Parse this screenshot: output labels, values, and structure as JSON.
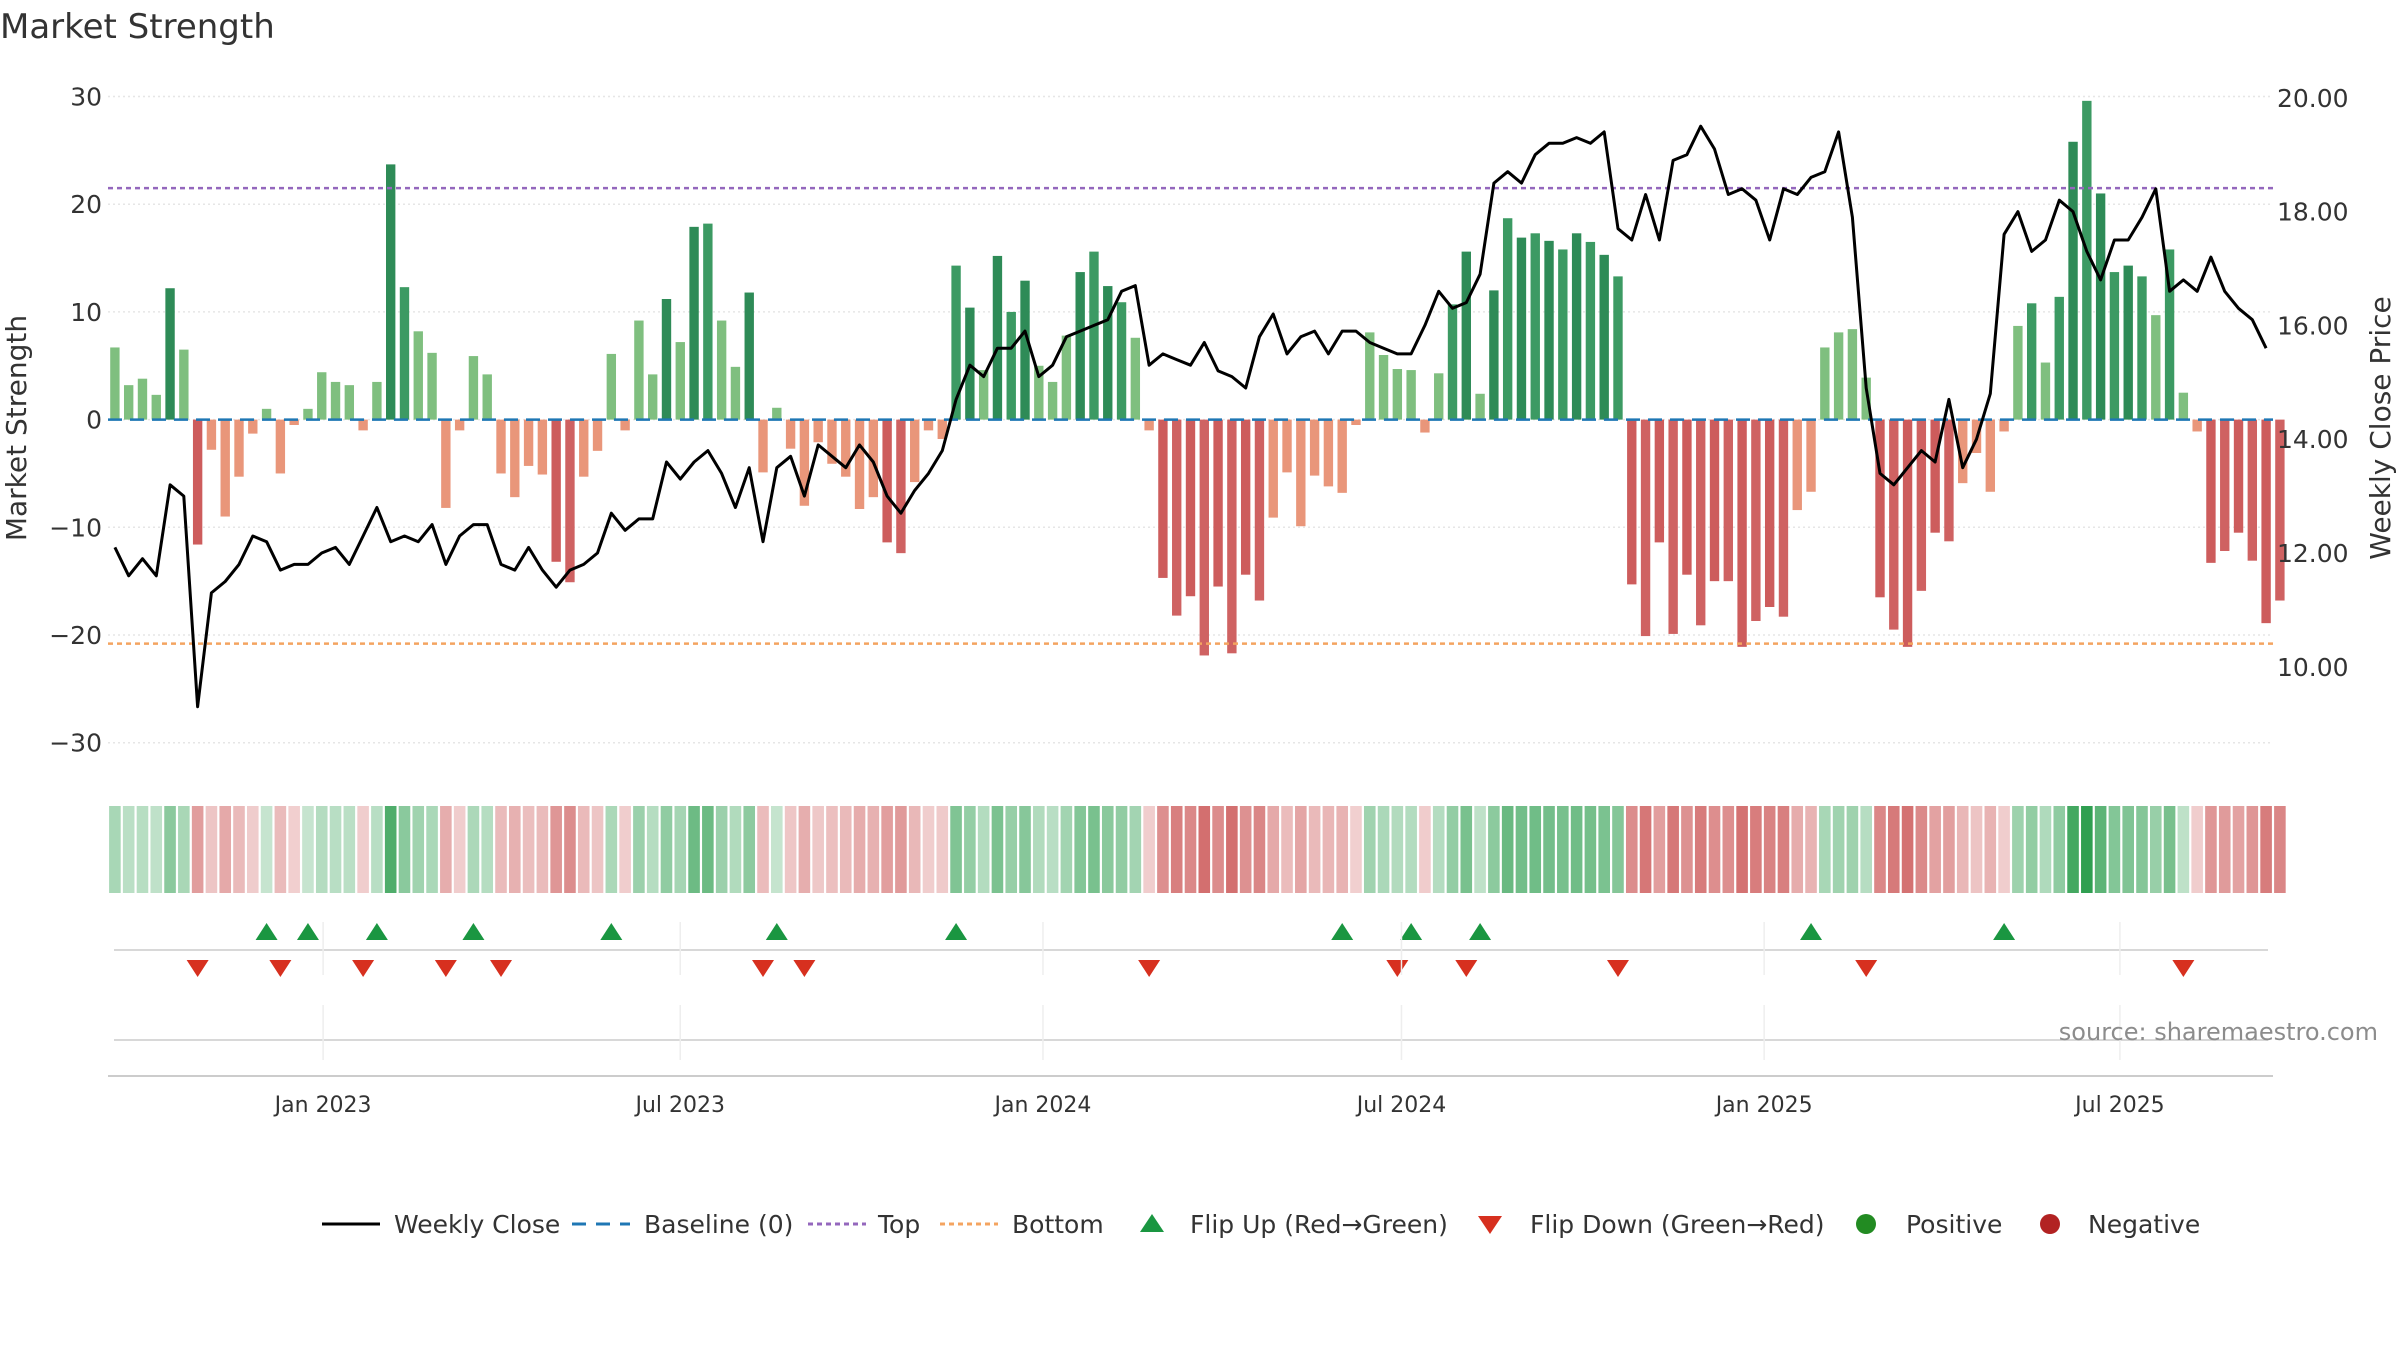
{
  "colors": {
    "pos_dark": "#2e8b57",
    "pos_light": "#7fbf7f",
    "neg_dark": "#cd5c5c",
    "neg_light": "#e9967a",
    "top_line": "#9467bd",
    "bottom_line": "#f4a460",
    "baseline": "#1f77b4",
    "close_line": "#000000",
    "flip_up": "#1a9641",
    "flip_down": "#d7301f",
    "positive_dot": "#228b22",
    "negative_dot": "#b22222",
    "grid": "#e6e6e6",
    "source_text": "#8c8c8c"
  },
  "source": "source: sharemaestro.com",
  "chart_data": {
    "type": "bar",
    "title": "Market Strength",
    "ylabel": "Market Strength",
    "y2label": "Weekly Close Price",
    "ylim": [
      -33,
      32
    ],
    "y2lim": [
      8.1,
      20.4
    ],
    "yticks": [
      -30,
      -20,
      -10,
      0,
      10,
      20,
      30
    ],
    "ytick_labels": [
      "−30",
      "−20",
      "−10",
      "0",
      "10",
      "20",
      "30"
    ],
    "y2ticks": [
      10,
      12,
      14,
      16,
      18,
      20
    ],
    "y2tick_labels": [
      "10.00",
      "12.00",
      "14.00",
      "16.00",
      "18.00",
      "20.00"
    ],
    "x_index_range": [
      -0.5,
      156.5
    ],
    "xticks": [
      {
        "index": 15.1,
        "label": "Jan 2023"
      },
      {
        "index": 41.0,
        "label": "Jul 2023"
      },
      {
        "index": 67.3,
        "label": "Jan 2024"
      },
      {
        "index": 93.3,
        "label": "Jul 2024"
      },
      {
        "index": 119.6,
        "label": "Jan 2025"
      },
      {
        "index": 145.4,
        "label": "Jul 2025"
      }
    ],
    "top_level": 21.5,
    "bottom_level": -20.8,
    "baseline": 0,
    "strength": [
      6.7,
      3.2,
      3.8,
      2.3,
      12.2,
      6.5,
      -11.6,
      -2.8,
      -9.0,
      -5.3,
      -1.3,
      1.0,
      -5.0,
      -0.5,
      1.0,
      4.4,
      3.5,
      3.2,
      -1.0,
      3.5,
      23.7,
      12.3,
      8.2,
      6.2,
      -8.2,
      -1.0,
      5.9,
      4.2,
      -5.0,
      -7.2,
      -4.3,
      -5.1,
      -13.2,
      -15.1,
      -5.3,
      -2.9,
      6.1,
      -1.0,
      9.2,
      4.2,
      11.2,
      7.2,
      17.9,
      18.2,
      9.2,
      4.9,
      11.8,
      -4.9,
      1.1,
      -2.7,
      -8.0,
      -2.1,
      -4.1,
      -5.3,
      -8.3,
      -7.2,
      -11.4,
      -12.4,
      -5.8,
      -1.0,
      -1.8,
      14.3,
      10.4,
      4.6,
      15.2,
      10.0,
      12.9,
      5.0,
      3.5,
      7.8,
      13.7,
      15.6,
      12.4,
      10.9,
      7.6,
      -1.0,
      -14.7,
      -18.2,
      -16.4,
      -21.9,
      -15.5,
      -21.7,
      -14.4,
      -16.8,
      -9.1,
      -4.9,
      -9.9,
      -5.2,
      -6.2,
      -6.8,
      -0.5,
      8.1,
      6.0,
      4.7,
      4.6,
      -1.2,
      4.3,
      10.7,
      15.6,
      2.4,
      12.0,
      18.7,
      16.9,
      17.3,
      16.6,
      15.8,
      17.3,
      16.5,
      15.3,
      13.3,
      -15.3,
      -20.1,
      -11.4,
      -19.9,
      -14.4,
      -19.1,
      -15.0,
      -15.0,
      -21.1,
      -18.7,
      -17.4,
      -18.3,
      -8.4,
      -6.7,
      6.7,
      8.1,
      8.4,
      3.9,
      -16.5,
      -19.5,
      -21.1,
      -15.9,
      -10.5,
      -11.3,
      -5.9,
      -3.1,
      -6.7,
      -1.1,
      8.7,
      10.8,
      5.3,
      11.4,
      25.8,
      29.6,
      21.0,
      13.7,
      14.3,
      13.3,
      9.7,
      15.8,
      2.5,
      -1.1,
      -13.3,
      -12.2,
      -10.5,
      -13.1,
      -18.9,
      -16.8
    ],
    "close": [
      12.1,
      11.6,
      11.9,
      11.6,
      13.2,
      13.0,
      9.3,
      11.3,
      11.5,
      11.8,
      12.3,
      12.2,
      11.7,
      11.8,
      11.8,
      12.0,
      12.1,
      11.8,
      12.3,
      12.8,
      12.2,
      12.3,
      12.2,
      12.5,
      11.8,
      12.3,
      12.5,
      12.5,
      11.8,
      11.7,
      12.1,
      11.7,
      11.4,
      11.7,
      11.8,
      12.0,
      12.7,
      12.4,
      12.6,
      12.6,
      13.6,
      13.3,
      13.6,
      13.8,
      13.4,
      12.8,
      13.5,
      12.2,
      13.5,
      13.7,
      13.0,
      13.9,
      13.7,
      13.5,
      13.9,
      13.6,
      13.0,
      12.7,
      13.1,
      13.4,
      13.8,
      14.7,
      15.3,
      15.1,
      15.6,
      15.6,
      15.9,
      15.1,
      15.3,
      15.8,
      15.9,
      16.0,
      16.1,
      16.6,
      16.7,
      15.3,
      15.5,
      15.4,
      15.3,
      15.7,
      15.2,
      15.1,
      14.9,
      15.8,
      16.2,
      15.5,
      15.8,
      15.9,
      15.5,
      15.9,
      15.9,
      15.7,
      15.6,
      15.5,
      15.5,
      16.0,
      16.6,
      16.3,
      16.4,
      16.9,
      18.5,
      18.7,
      18.5,
      19.0,
      19.2,
      19.2,
      19.3,
      19.2,
      19.4,
      17.7,
      17.5,
      18.3,
      17.5,
      18.9,
      19.0,
      19.5,
      19.1,
      18.3,
      18.4,
      18.2,
      17.5,
      18.4,
      18.3,
      18.6,
      18.7,
      19.4,
      17.9,
      14.9,
      13.4,
      13.2,
      13.5,
      13.8,
      13.6,
      14.7,
      13.5,
      14.0,
      14.8,
      17.6,
      18.0,
      17.3,
      17.5,
      18.2,
      18.0,
      17.3,
      16.8,
      17.5,
      17.5,
      17.9,
      18.4,
      16.6,
      16.8,
      16.6,
      17.2,
      16.6,
      16.3,
      16.1,
      15.6
    ],
    "flip_up_indices": [
      11,
      14,
      19,
      26,
      36,
      48,
      61,
      89,
      94,
      99,
      123,
      137
    ],
    "flip_down_indices": [
      6,
      12,
      18,
      24,
      28,
      47,
      50,
      75,
      93,
      98,
      109,
      127,
      150
    ],
    "legend": [
      "Weekly Close",
      "Baseline (0)",
      "Top",
      "Bottom",
      "Flip Up (Red→Green)",
      "Flip Down (Green→Red)",
      "Positive",
      "Negative"
    ],
    "legend_position": "bottom-center"
  }
}
